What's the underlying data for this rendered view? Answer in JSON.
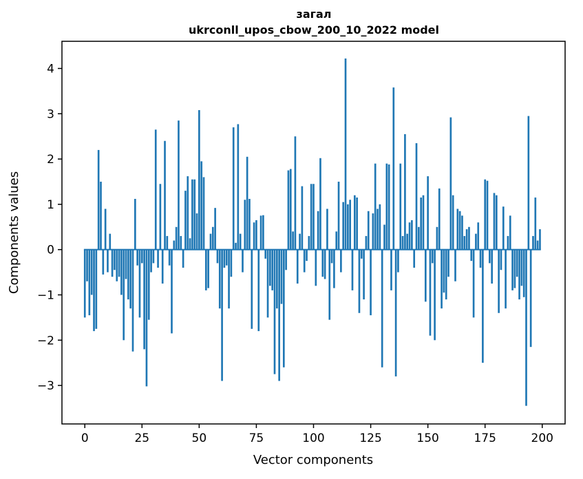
{
  "chart_data": {
    "type": "bar",
    "title": "загал",
    "subtitle": "ukrconll_upos_cbow_200_10_2022 model",
    "xlabel": "Vector components",
    "ylabel": "Components values",
    "xlim": [
      -10,
      210
    ],
    "ylim": [
      -3.85,
      4.6
    ],
    "xticks": [
      0,
      25,
      50,
      75,
      100,
      125,
      150,
      175,
      200
    ],
    "yticks": [
      -3,
      -2,
      -1,
      0,
      1,
      2,
      3,
      4
    ],
    "legend": null,
    "grid": false,
    "bar_color": "#1f77b4",
    "bar_width": 0.8,
    "x_start": 0,
    "values": [
      -1.5,
      -0.7,
      -1.45,
      -1.0,
      -1.8,
      -1.75,
      2.2,
      1.5,
      -0.55,
      0.9,
      -0.5,
      0.35,
      -0.6,
      -0.45,
      -0.7,
      -0.6,
      -1.0,
      -2.0,
      -0.65,
      -1.1,
      -1.3,
      -2.25,
      1.12,
      -0.35,
      -1.5,
      -0.3,
      -2.2,
      -3.02,
      -1.55,
      -0.5,
      -0.3,
      2.65,
      -0.4,
      1.45,
      -0.75,
      2.4,
      0.3,
      -0.35,
      -1.85,
      0.2,
      0.5,
      2.85,
      0.3,
      -0.4,
      1.3,
      1.62,
      0.25,
      1.55,
      1.55,
      0.8,
      3.08,
      1.95,
      1.6,
      -0.9,
      -0.85,
      0.35,
      0.5,
      0.92,
      -0.3,
      -1.3,
      -2.9,
      -0.4,
      -0.35,
      -1.3,
      -0.6,
      2.7,
      0.15,
      2.77,
      0.35,
      -0.5,
      1.1,
      2.05,
      1.12,
      -1.75,
      0.6,
      0.65,
      -1.8,
      0.75,
      0.76,
      -0.2,
      -1.5,
      -0.8,
      -0.9,
      -2.75,
      -1.3,
      -2.9,
      -1.2,
      -2.6,
      -0.45,
      1.75,
      1.78,
      0.4,
      2.5,
      -0.75,
      0.35,
      1.4,
      -0.5,
      -0.25,
      0.3,
      1.45,
      1.45,
      -0.8,
      0.85,
      2.02,
      -0.6,
      -0.65,
      0.9,
      -1.55,
      -0.3,
      -0.85,
      0.4,
      1.5,
      -0.5,
      1.05,
      4.22,
      1.0,
      1.1,
      -0.9,
      1.2,
      1.15,
      -1.4,
      -0.2,
      -1.1,
      0.3,
      0.85,
      -1.45,
      0.8,
      1.9,
      0.9,
      1.0,
      -2.6,
      0.55,
      1.9,
      1.88,
      -0.9,
      3.58,
      -2.8,
      -0.5,
      1.9,
      0.3,
      2.55,
      0.35,
      0.6,
      0.65,
      -0.4,
      2.35,
      0.5,
      1.15,
      1.2,
      -1.15,
      1.62,
      -1.9,
      -0.3,
      -2.0,
      0.5,
      1.35,
      -1.3,
      -0.95,
      -1.1,
      -0.6,
      2.92,
      1.2,
      -0.7,
      0.9,
      0.85,
      0.75,
      0.3,
      0.45,
      0.5,
      -0.25,
      -1.5,
      0.35,
      0.6,
      -0.4,
      -2.5,
      1.55,
      1.52,
      -0.3,
      -0.75,
      1.25,
      1.2,
      -1.4,
      -0.45,
      0.95,
      -1.3,
      0.3,
      0.75,
      -0.9,
      -0.85,
      -0.6,
      -1.1,
      -0.8,
      -1.05,
      -3.45,
      2.95,
      -2.15,
      0.3,
      1.15,
      0.2,
      0.45
    ]
  }
}
